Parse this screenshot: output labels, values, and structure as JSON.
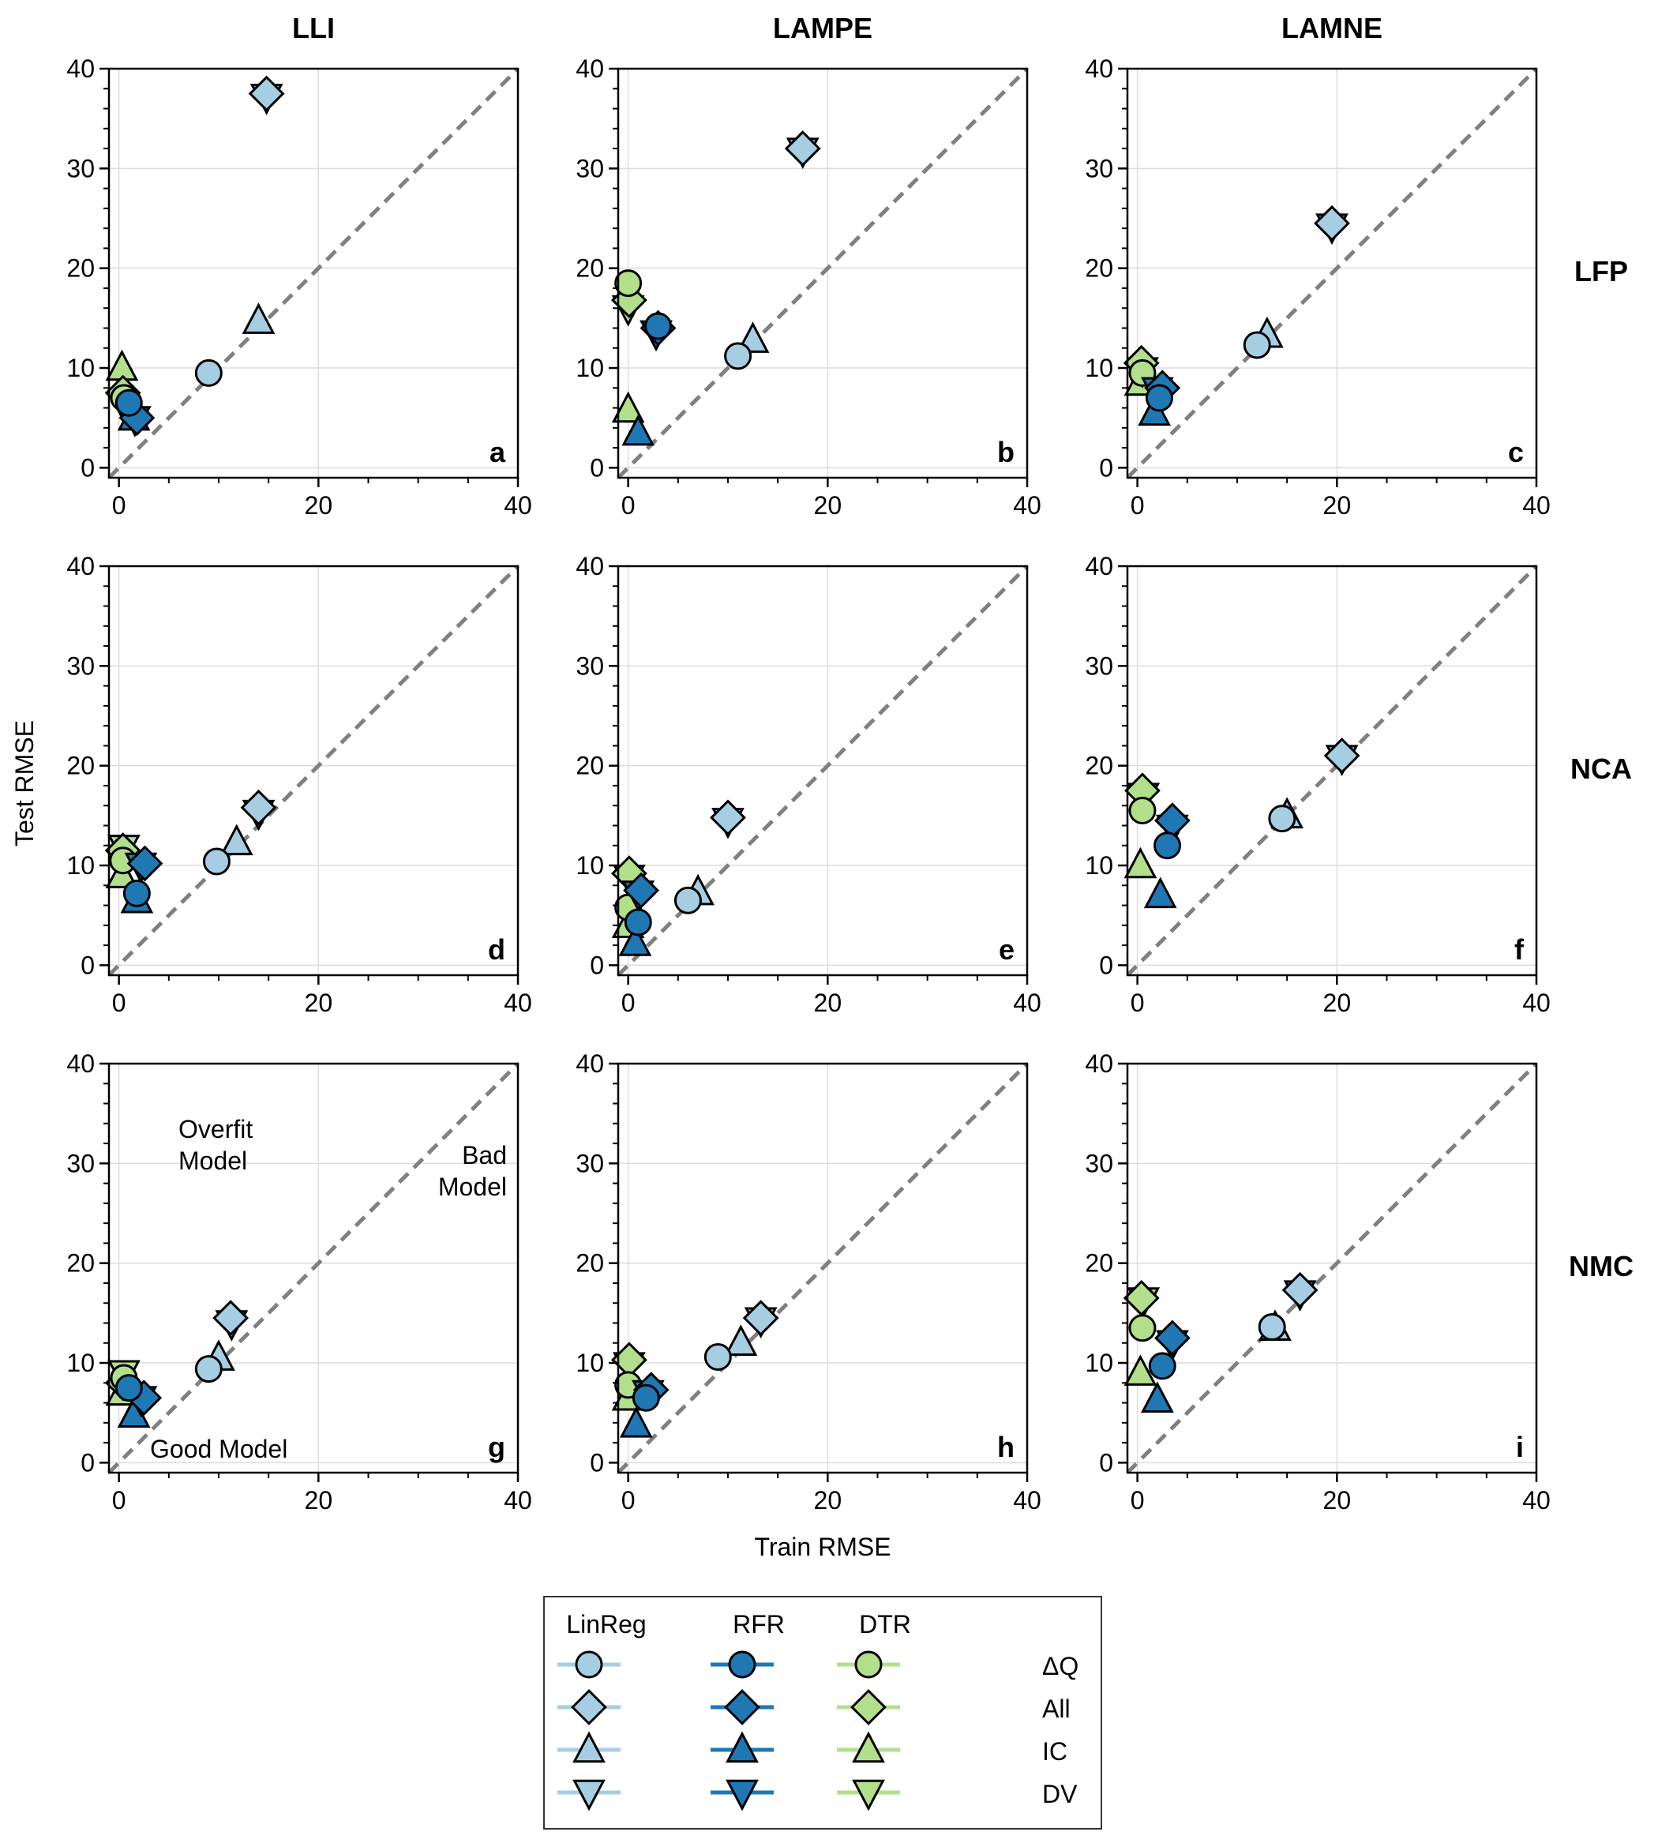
{
  "figure": {
    "column_titles": [
      "LLI",
      "LAMPE",
      "LAMNE"
    ],
    "row_titles": [
      "LFP",
      "NCA",
      "NMC"
    ],
    "xlabel": "Train RMSE",
    "ylabel": "Test RMSE",
    "annotations": {
      "overfit": [
        "Overfit",
        "Model"
      ],
      "bad": [
        "Bad",
        "Model"
      ],
      "good": "Good Model"
    }
  },
  "legend": {
    "models": [
      "LinReg",
      "RFR",
      "DTR"
    ],
    "features": [
      "ΔQ",
      "All",
      "IC",
      "DV"
    ]
  },
  "colors": {
    "LinReg": "#a6cee3",
    "RFR": "#1f78b4",
    "DTR": "#b2df8a",
    "diagonal": "#808080",
    "grid": "#dcdcdc"
  },
  "chart_data": {
    "type": "scatter",
    "xlim": [
      -1,
      40
    ],
    "ylim": [
      -1,
      40
    ],
    "ticks": [
      0,
      20,
      40
    ],
    "yticks": [
      0,
      10,
      20,
      30,
      40
    ],
    "grid": true,
    "reference_line": "y = x",
    "panels": [
      {
        "label": "a",
        "row": "LFP",
        "col": "LLI",
        "points": [
          {
            "model": "LinReg",
            "feature": "ΔQ",
            "x": 9.0,
            "y": 9.5
          },
          {
            "model": "LinReg",
            "feature": "All",
            "x": 14.8,
            "y": 37.5
          },
          {
            "model": "LinReg",
            "feature": "IC",
            "x": 14.0,
            "y": 14.7
          },
          {
            "model": "LinReg",
            "feature": "DV",
            "x": 14.8,
            "y": 37.2
          },
          {
            "model": "RFR",
            "feature": "ΔQ",
            "x": 1.0,
            "y": 6.5
          },
          {
            "model": "RFR",
            "feature": "All",
            "x": 1.8,
            "y": 5.0
          },
          {
            "model": "RFR",
            "feature": "IC",
            "x": 1.5,
            "y": 5.0
          },
          {
            "model": "RFR",
            "feature": "DV",
            "x": 1.6,
            "y": 4.9
          },
          {
            "model": "DTR",
            "feature": "ΔQ",
            "x": 0.5,
            "y": 7.0
          },
          {
            "model": "DTR",
            "feature": "All",
            "x": 0.4,
            "y": 7.5
          },
          {
            "model": "DTR",
            "feature": "IC",
            "x": 0.3,
            "y": 10.0
          },
          {
            "model": "DTR",
            "feature": "DV",
            "x": 0.5,
            "y": 6.3
          }
        ]
      },
      {
        "label": "b",
        "row": "LFP",
        "col": "LAMPE",
        "points": [
          {
            "model": "LinReg",
            "feature": "ΔQ",
            "x": 11.0,
            "y": 11.2
          },
          {
            "model": "LinReg",
            "feature": "All",
            "x": 17.5,
            "y": 32.0
          },
          {
            "model": "LinReg",
            "feature": "IC",
            "x": 12.5,
            "y": 12.8
          },
          {
            "model": "LinReg",
            "feature": "DV",
            "x": 17.5,
            "y": 31.8
          },
          {
            "model": "RFR",
            "feature": "ΔQ",
            "x": 3.0,
            "y": 14.2
          },
          {
            "model": "RFR",
            "feature": "All",
            "x": 3.0,
            "y": 14.0
          },
          {
            "model": "RFR",
            "feature": "IC",
            "x": 1.0,
            "y": 3.5
          },
          {
            "model": "RFR",
            "feature": "DV",
            "x": 2.8,
            "y": 13.5
          },
          {
            "model": "DTR",
            "feature": "ΔQ",
            "x": 0.0,
            "y": 18.5
          },
          {
            "model": "DTR",
            "feature": "All",
            "x": 0.1,
            "y": 16.8
          },
          {
            "model": "DTR",
            "feature": "IC",
            "x": 0.0,
            "y": 5.8
          },
          {
            "model": "DTR",
            "feature": "DV",
            "x": 0.0,
            "y": 16.0
          }
        ]
      },
      {
        "label": "c",
        "row": "LFP",
        "col": "LAMNE",
        "points": [
          {
            "model": "LinReg",
            "feature": "ΔQ",
            "x": 12.0,
            "y": 12.3
          },
          {
            "model": "LinReg",
            "feature": "All",
            "x": 19.5,
            "y": 24.5
          },
          {
            "model": "LinReg",
            "feature": "IC",
            "x": 13.0,
            "y": 13.3
          },
          {
            "model": "LinReg",
            "feature": "DV",
            "x": 19.5,
            "y": 24.2
          },
          {
            "model": "RFR",
            "feature": "ΔQ",
            "x": 2.2,
            "y": 7.0
          },
          {
            "model": "RFR",
            "feature": "All",
            "x": 2.5,
            "y": 8.0
          },
          {
            "model": "RFR",
            "feature": "IC",
            "x": 1.7,
            "y": 5.5
          },
          {
            "model": "RFR",
            "feature": "DV",
            "x": 2.0,
            "y": 7.8
          },
          {
            "model": "DTR",
            "feature": "ΔQ",
            "x": 0.5,
            "y": 9.5
          },
          {
            "model": "DTR",
            "feature": "All",
            "x": 0.4,
            "y": 10.5
          },
          {
            "model": "DTR",
            "feature": "IC",
            "x": 0.3,
            "y": 8.5
          },
          {
            "model": "DTR",
            "feature": "DV",
            "x": 0.5,
            "y": 9.8
          }
        ]
      },
      {
        "label": "d",
        "row": "NCA",
        "col": "LLI",
        "points": [
          {
            "model": "LinReg",
            "feature": "ΔQ",
            "x": 9.8,
            "y": 10.4
          },
          {
            "model": "LinReg",
            "feature": "All",
            "x": 14.0,
            "y": 15.8
          },
          {
            "model": "LinReg",
            "feature": "IC",
            "x": 11.8,
            "y": 12.3
          },
          {
            "model": "LinReg",
            "feature": "DV",
            "x": 14.0,
            "y": 15.3
          },
          {
            "model": "RFR",
            "feature": "ΔQ",
            "x": 1.8,
            "y": 7.2
          },
          {
            "model": "RFR",
            "feature": "All",
            "x": 2.6,
            "y": 10.2
          },
          {
            "model": "RFR",
            "feature": "IC",
            "x": 1.8,
            "y": 6.5
          },
          {
            "model": "RFR",
            "feature": "DV",
            "x": 2.2,
            "y": 10.0
          },
          {
            "model": "DTR",
            "feature": "ΔQ",
            "x": 0.4,
            "y": 10.5
          },
          {
            "model": "DTR",
            "feature": "All",
            "x": 0.4,
            "y": 11.5
          },
          {
            "model": "DTR",
            "feature": "IC",
            "x": 0.3,
            "y": 9.0
          },
          {
            "model": "DTR",
            "feature": "DV",
            "x": 0.5,
            "y": 11.8
          }
        ]
      },
      {
        "label": "e",
        "row": "NCA",
        "col": "LAMPE",
        "points": [
          {
            "model": "LinReg",
            "feature": "ΔQ",
            "x": 6.0,
            "y": 6.5
          },
          {
            "model": "LinReg",
            "feature": "All",
            "x": 10.0,
            "y": 14.8
          },
          {
            "model": "LinReg",
            "feature": "IC",
            "x": 7.0,
            "y": 7.3
          },
          {
            "model": "LinReg",
            "feature": "DV",
            "x": 10.0,
            "y": 14.5
          },
          {
            "model": "RFR",
            "feature": "ΔQ",
            "x": 1.0,
            "y": 4.3
          },
          {
            "model": "RFR",
            "feature": "All",
            "x": 1.3,
            "y": 7.5
          },
          {
            "model": "RFR",
            "feature": "IC",
            "x": 0.7,
            "y": 2.2
          },
          {
            "model": "RFR",
            "feature": "DV",
            "x": 1.0,
            "y": 7.2
          },
          {
            "model": "DTR",
            "feature": "ΔQ",
            "x": 0.0,
            "y": 5.8
          },
          {
            "model": "DTR",
            "feature": "All",
            "x": 0.1,
            "y": 9.2
          },
          {
            "model": "DTR",
            "feature": "IC",
            "x": 0.0,
            "y": 4.0
          },
          {
            "model": "DTR",
            "feature": "DV",
            "x": 0.1,
            "y": 8.8
          }
        ]
      },
      {
        "label": "f",
        "row": "NCA",
        "col": "LAMNE",
        "points": [
          {
            "model": "LinReg",
            "feature": "ΔQ",
            "x": 14.5,
            "y": 14.7
          },
          {
            "model": "LinReg",
            "feature": "All",
            "x": 20.5,
            "y": 21.0
          },
          {
            "model": "LinReg",
            "feature": "IC",
            "x": 15.0,
            "y": 15.0
          },
          {
            "model": "LinReg",
            "feature": "DV",
            "x": 20.5,
            "y": 20.8
          },
          {
            "model": "RFR",
            "feature": "ΔQ",
            "x": 3.0,
            "y": 12.0
          },
          {
            "model": "RFR",
            "feature": "All",
            "x": 3.5,
            "y": 14.5
          },
          {
            "model": "RFR",
            "feature": "IC",
            "x": 2.3,
            "y": 7.0
          },
          {
            "model": "RFR",
            "feature": "DV",
            "x": 3.5,
            "y": 13.8
          },
          {
            "model": "DTR",
            "feature": "ΔQ",
            "x": 0.5,
            "y": 15.5
          },
          {
            "model": "DTR",
            "feature": "All",
            "x": 0.5,
            "y": 17.5
          },
          {
            "model": "DTR",
            "feature": "IC",
            "x": 0.3,
            "y": 10.0
          },
          {
            "model": "DTR",
            "feature": "DV",
            "x": 0.6,
            "y": 17.0
          }
        ]
      },
      {
        "label": "g",
        "row": "NMC",
        "col": "LLI",
        "points": [
          {
            "model": "LinReg",
            "feature": "ΔQ",
            "x": 9.0,
            "y": 9.4
          },
          {
            "model": "LinReg",
            "feature": "All",
            "x": 11.2,
            "y": 14.5
          },
          {
            "model": "LinReg",
            "feature": "IC",
            "x": 10.0,
            "y": 10.5
          },
          {
            "model": "LinReg",
            "feature": "DV",
            "x": 11.3,
            "y": 14.0
          },
          {
            "model": "RFR",
            "feature": "ΔQ",
            "x": 1.0,
            "y": 7.5
          },
          {
            "model": "RFR",
            "feature": "All",
            "x": 2.5,
            "y": 6.5
          },
          {
            "model": "RFR",
            "feature": "IC",
            "x": 1.5,
            "y": 4.8
          },
          {
            "model": "RFR",
            "feature": "DV",
            "x": 2.2,
            "y": 6.4
          },
          {
            "model": "DTR",
            "feature": "ΔQ",
            "x": 0.5,
            "y": 8.5
          },
          {
            "model": "DTR",
            "feature": "All",
            "x": 0.4,
            "y": 8.0
          },
          {
            "model": "DTR",
            "feature": "IC",
            "x": 0.3,
            "y": 7.0
          },
          {
            "model": "DTR",
            "feature": "DV",
            "x": 0.5,
            "y": 9.0
          }
        ]
      },
      {
        "label": "h",
        "row": "NMC",
        "col": "LAMPE",
        "points": [
          {
            "model": "LinReg",
            "feature": "ΔQ",
            "x": 9.0,
            "y": 10.6
          },
          {
            "model": "LinReg",
            "feature": "All",
            "x": 13.3,
            "y": 14.5
          },
          {
            "model": "LinReg",
            "feature": "IC",
            "x": 11.3,
            "y": 12.0
          },
          {
            "model": "LinReg",
            "feature": "DV",
            "x": 13.3,
            "y": 14.3
          },
          {
            "model": "RFR",
            "feature": "ΔQ",
            "x": 1.8,
            "y": 6.5
          },
          {
            "model": "RFR",
            "feature": "All",
            "x": 2.3,
            "y": 7.3
          },
          {
            "model": "RFR",
            "feature": "IC",
            "x": 0.8,
            "y": 3.8
          },
          {
            "model": "RFR",
            "feature": "DV",
            "x": 2.0,
            "y": 7.0
          },
          {
            "model": "DTR",
            "feature": "ΔQ",
            "x": 0.0,
            "y": 7.8
          },
          {
            "model": "DTR",
            "feature": "All",
            "x": 0.1,
            "y": 10.3
          },
          {
            "model": "DTR",
            "feature": "IC",
            "x": 0.0,
            "y": 6.5
          },
          {
            "model": "DTR",
            "feature": "DV",
            "x": 0.1,
            "y": 9.8
          }
        ]
      },
      {
        "label": "i",
        "row": "NMC",
        "col": "LAMNE",
        "points": [
          {
            "model": "LinReg",
            "feature": "ΔQ",
            "x": 13.5,
            "y": 13.6
          },
          {
            "model": "LinReg",
            "feature": "All",
            "x": 16.3,
            "y": 17.3
          },
          {
            "model": "LinReg",
            "feature": "IC",
            "x": 13.8,
            "y": 13.5
          },
          {
            "model": "LinReg",
            "feature": "DV",
            "x": 16.3,
            "y": 17.0
          },
          {
            "model": "RFR",
            "feature": "ΔQ",
            "x": 2.5,
            "y": 9.7
          },
          {
            "model": "RFR",
            "feature": "All",
            "x": 3.5,
            "y": 12.5
          },
          {
            "model": "RFR",
            "feature": "IC",
            "x": 2.0,
            "y": 6.3
          },
          {
            "model": "RFR",
            "feature": "DV",
            "x": 3.5,
            "y": 12.0
          },
          {
            "model": "DTR",
            "feature": "ΔQ",
            "x": 0.5,
            "y": 13.5
          },
          {
            "model": "DTR",
            "feature": "All",
            "x": 0.4,
            "y": 16.5
          },
          {
            "model": "DTR",
            "feature": "IC",
            "x": 0.3,
            "y": 9.0
          },
          {
            "model": "DTR",
            "feature": "DV",
            "x": 0.6,
            "y": 16.3
          }
        ]
      }
    ]
  }
}
